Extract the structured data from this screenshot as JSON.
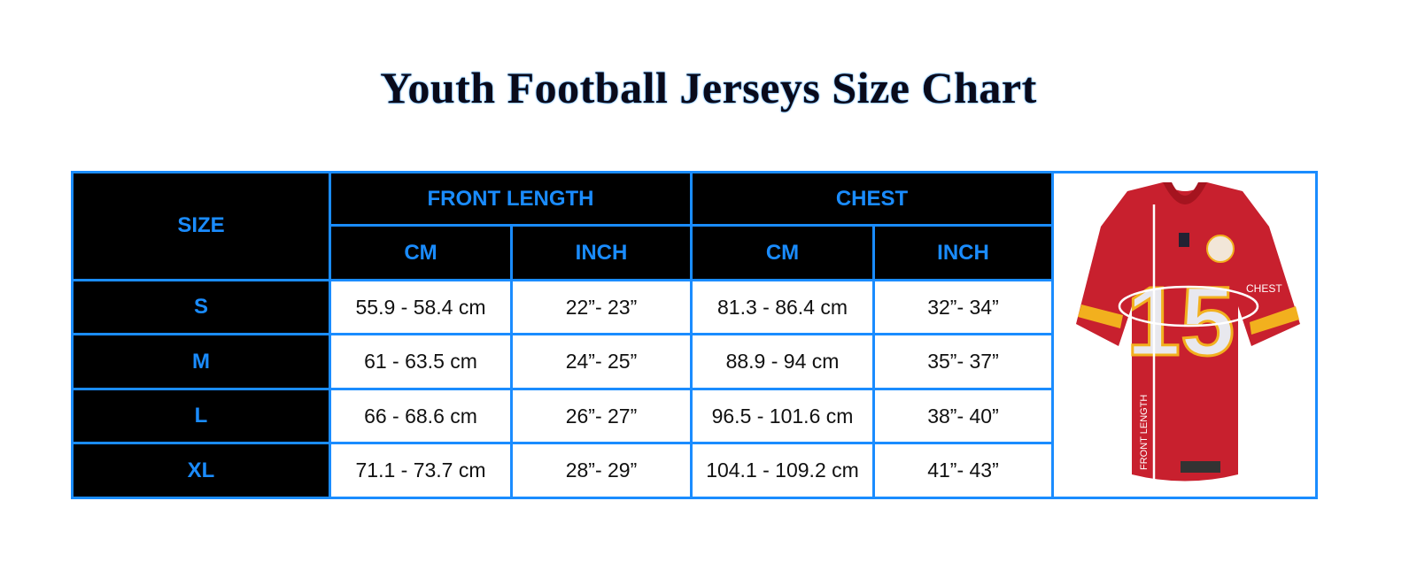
{
  "title": "Youth Football Jerseys Size Chart",
  "headers": {
    "size": "SIZE",
    "front_length": "FRONT LENGTH",
    "chest": "CHEST",
    "cm": "CM",
    "inch": "INCH"
  },
  "rows": [
    {
      "size": "S",
      "fl_cm": "55.9 - 58.4 cm",
      "fl_in": "22”- 23”",
      "ch_cm": "81.3 - 86.4 cm",
      "ch_in": "32”- 34”"
    },
    {
      "size": "M",
      "fl_cm": "61 - 63.5 cm",
      "fl_in": "24”- 25”",
      "ch_cm": "88.9 - 94 cm",
      "ch_in": "35”- 37”"
    },
    {
      "size": "L",
      "fl_cm": "66 - 68.6 cm",
      "fl_in": "26”- 27”",
      "ch_cm": "96.5 - 101.6 cm",
      "ch_in": "38”- 40”"
    },
    {
      "size": "XL",
      "fl_cm": "71.1 - 73.7 cm",
      "fl_in": "28”- 29”",
      "ch_cm": "104.1 - 109.2 cm",
      "ch_in": "41”- 43”"
    }
  ],
  "image": {
    "chest_label": "CHEST",
    "front_length_label": "FRONT LENGTH",
    "jersey_number": "15"
  },
  "colors": {
    "accent": "#1a8cff",
    "header_bg": "#000000",
    "jersey_red": "#c8202e",
    "jersey_gold": "#f2b01e"
  }
}
